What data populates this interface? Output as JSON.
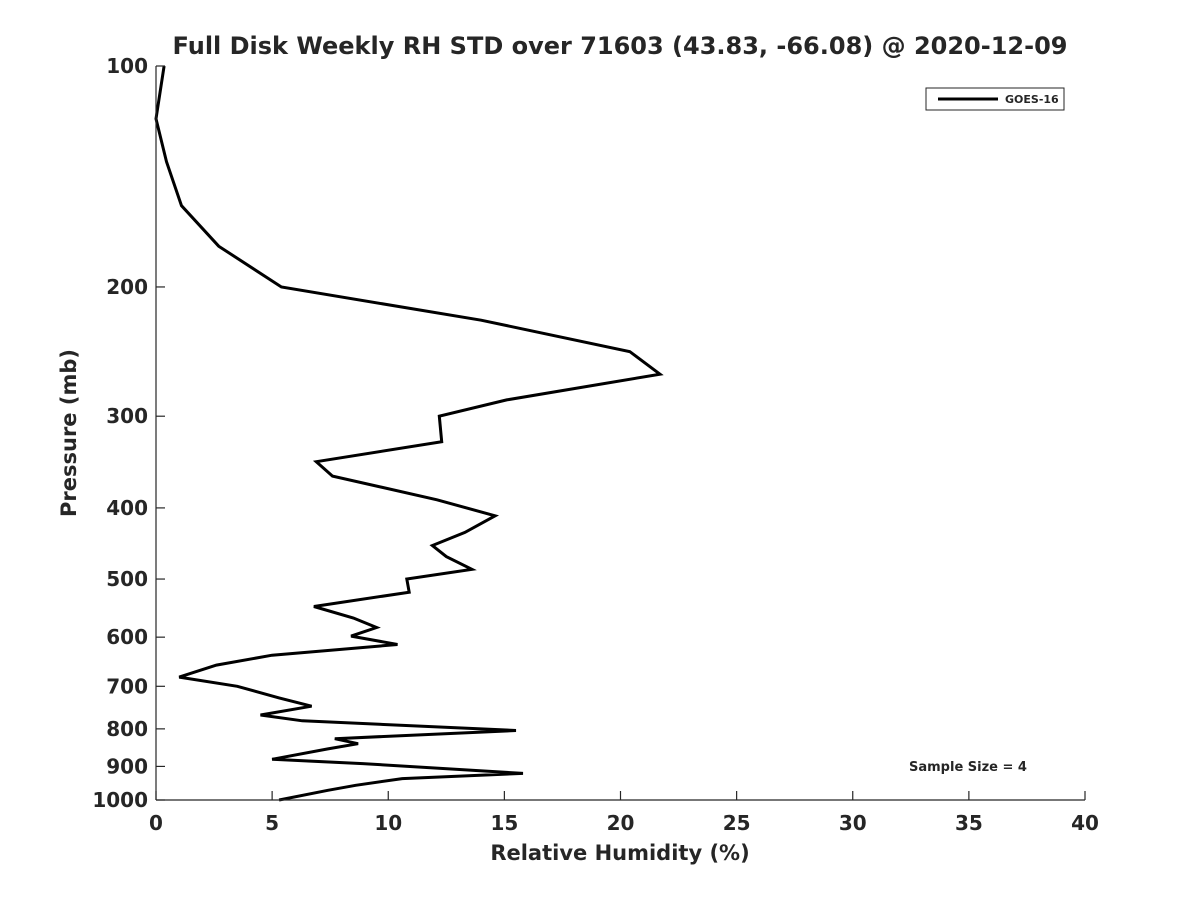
{
  "chart_data": {
    "type": "line",
    "title": "Full Disk Weekly RH STD over 71603 (43.83, -66.08) @ 2020-12-09",
    "xlabel": "Relative Humidity (%)",
    "ylabel": "Pressure (mb)",
    "xlim": [
      0,
      40
    ],
    "ylim": [
      100,
      1000
    ],
    "yscale": "log",
    "y_reversed": true,
    "grid": false,
    "x_ticks": [
      0,
      5,
      10,
      15,
      20,
      25,
      30,
      35,
      40
    ],
    "y_ticks": [
      100,
      200,
      300,
      400,
      500,
      600,
      700,
      800,
      900,
      1000
    ],
    "legend": {
      "position": "top-right",
      "entries": [
        "GOES-16"
      ]
    },
    "annotation": "Sample Size = 4",
    "series": [
      {
        "name": "GOES-16",
        "color": "#000000",
        "points": [
          [
            0.35,
            100
          ],
          [
            0.0,
            118
          ],
          [
            0.45,
            135
          ],
          [
            1.1,
            155
          ],
          [
            2.7,
            176
          ],
          [
            5.4,
            200
          ],
          [
            14.0,
            222
          ],
          [
            20.4,
            245
          ],
          [
            21.7,
            263
          ],
          [
            15.1,
            285
          ],
          [
            12.2,
            300
          ],
          [
            12.3,
            325
          ],
          [
            6.9,
            346
          ],
          [
            7.6,
            362
          ],
          [
            12.1,
            390
          ],
          [
            14.6,
            410
          ],
          [
            13.3,
            432
          ],
          [
            11.9,
            450
          ],
          [
            12.5,
            466
          ],
          [
            13.6,
            485
          ],
          [
            10.8,
            500
          ],
          [
            10.9,
            521
          ],
          [
            6.8,
            545
          ],
          [
            8.5,
            565
          ],
          [
            9.5,
            582
          ],
          [
            8.4,
            598
          ],
          [
            10.4,
            614
          ],
          [
            5.0,
            635
          ],
          [
            2.6,
            655
          ],
          [
            1.0,
            680
          ],
          [
            3.5,
            700
          ],
          [
            5.3,
            726
          ],
          [
            6.7,
            745
          ],
          [
            4.5,
            766
          ],
          [
            6.3,
            780
          ],
          [
            15.5,
            804
          ],
          [
            7.7,
            825
          ],
          [
            8.7,
            838
          ],
          [
            7.4,
            852
          ],
          [
            5.0,
            880
          ],
          [
            8.9,
            892
          ],
          [
            15.8,
            920
          ],
          [
            10.6,
            935
          ],
          [
            8.6,
            955
          ],
          [
            7.4,
            970
          ],
          [
            5.3,
            1000
          ]
        ]
      }
    ]
  }
}
